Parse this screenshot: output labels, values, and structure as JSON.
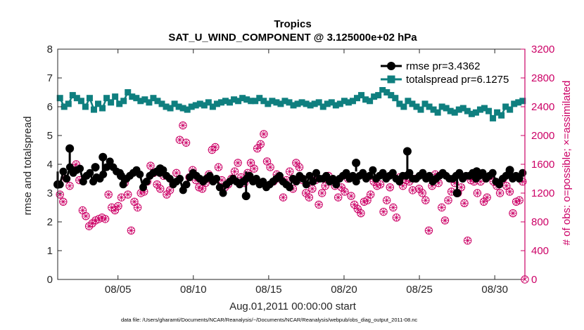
{
  "chart_data": {
    "type": "line",
    "title": "Tropics",
    "subtitle": "SAT_U_WIND_COMPONENT @ 3.125000e+02 hPa",
    "xlabel": "Aug.01,2011 00:00:00 start",
    "ylabel": "rmse and totalspread",
    "ylabel_right": "# of obs: o=possible; ×=assimilated",
    "xlim": [
      1.0,
      32.0
    ],
    "ylim": [
      0,
      8
    ],
    "ylim_right": [
      0,
      3200
    ],
    "x_ticks": [
      5,
      10,
      15,
      20,
      25,
      30
    ],
    "x_tick_labels": [
      "08/05",
      "08/10",
      "08/15",
      "08/20",
      "08/25",
      "08/30"
    ],
    "y_ticks": [
      "0",
      "1",
      "2",
      "3",
      "4",
      "5",
      "6",
      "7",
      "8"
    ],
    "y_right_ticks": [
      "0",
      "400",
      "800",
      "1200",
      "1600",
      "2000",
      "2400",
      "2800",
      "3200"
    ],
    "legend_position": "top-right",
    "colors": {
      "rmse": "#000000",
      "spread": "#0f7f7f",
      "obs": "#cc0066"
    },
    "footer": "data file: /Users/gharamti/Documents/NCAR/Reanalysis/~/Documents/NCAR/Reanalysis/webpub/obs_diag_output_2011-08.nc",
    "series": [
      {
        "name": "rmse pr=3.4362",
        "axis": "left",
        "values": [
          3.3,
          3.75,
          3.5,
          3.9,
          3.7,
          3.8,
          3.85,
          3.4,
          3.6,
          3.7,
          3.4,
          3.55,
          3.5,
          3.65,
          3.9,
          4.1,
          3.9,
          3.75,
          3.7,
          3.3,
          3.5,
          3.6,
          3.7,
          3.8,
          3.65,
          3.2,
          3.4,
          3.6,
          3.7,
          3.75,
          3.7,
          3.8,
          3.6,
          3.5,
          3.3,
          3.4,
          3.5,
          3.1,
          3.3,
          3.55,
          3.7,
          3.6,
          3.5,
          3.4,
          3.5,
          3.6,
          3.4,
          3.5,
          3.2,
          3.0,
          3.3,
          3.4,
          3.5,
          3.4,
          3.3,
          3.4,
          3.5,
          3.6,
          3.4,
          3.5,
          3.3,
          3.4,
          3.2,
          3.3,
          3.4,
          3.5,
          3.6,
          3.4,
          3.3,
          3.2,
          3.5,
          3.4,
          3.6,
          3.5,
          3.3,
          3.6,
          3.4,
          3.7,
          3.5,
          3.5,
          3.6,
          3.4,
          3.5,
          3.3,
          3.5,
          3.6,
          3.7,
          3.5,
          3.6,
          3.4,
          3.6,
          3.7,
          3.5,
          3.6,
          3.8,
          3.5,
          3.6,
          3.7,
          3.5,
          3.6,
          3.7,
          3.5,
          3.4,
          3.6,
          3.6,
          3.7,
          3.5,
          3.5,
          3.6,
          3.7,
          3.5,
          3.6,
          3.4,
          3.5,
          3.6,
          3.7,
          3.6,
          3.5,
          3.5,
          3.6,
          3.7,
          3.5,
          3.6,
          3.6,
          3.7,
          3.5,
          3.6,
          3.7,
          3.5,
          3.6,
          3.7,
          3.4,
          3.3,
          3.5,
          3.6,
          3.7,
          3.5,
          3.6,
          3.5,
          3.7
        ],
        "highlights": [
          {
            "x": 1.0,
            "y": 3.3
          },
          {
            "x": 1.8,
            "y": 4.55
          },
          {
            "x": 3.5,
            "y": 3.9
          },
          {
            "x": 4.0,
            "y": 4.25
          },
          {
            "x": 5.2,
            "y": 3.6
          },
          {
            "x": 7.8,
            "y": 3.85
          },
          {
            "x": 13.5,
            "y": 2.9
          },
          {
            "x": 20.8,
            "y": 4.05
          },
          {
            "x": 24.2,
            "y": 4.45
          },
          {
            "x": 27.5,
            "y": 3.0
          },
          {
            "x": 28.8,
            "y": 3.75
          },
          {
            "x": 31.0,
            "y": 3.8
          }
        ]
      },
      {
        "name": "totalspread pr=6.1275",
        "axis": "left",
        "values": [
          6.3,
          6.0,
          6.1,
          6.4,
          6.3,
          6.2,
          6.0,
          6.3,
          5.9,
          6.1,
          5.95,
          6.3,
          6.15,
          6.35,
          6.1,
          6.2,
          6.5,
          6.35,
          6.3,
          6.2,
          6.25,
          6.15,
          6.3,
          6.2,
          6.1,
          6.0,
          5.95,
          6.1,
          6.0,
          5.95,
          5.9,
          6.0,
          6.05,
          6.1,
          6.05,
          6.15,
          6.0,
          6.1,
          6.15,
          6.2,
          6.15,
          6.25,
          6.2,
          6.3,
          6.25,
          6.2,
          6.2,
          6.3,
          6.2,
          6.1,
          6.2,
          6.15,
          6.1,
          6.2,
          6.15,
          6.05,
          6.1,
          6.15,
          6.1,
          6.05,
          6.1,
          6.15,
          6.0,
          6.1,
          6.15,
          6.05,
          6.1,
          6.2,
          6.15,
          6.2,
          6.3,
          6.4,
          6.25,
          6.2,
          6.35,
          6.4,
          6.6,
          6.5,
          6.4,
          6.3,
          6.1,
          6.0,
          6.2,
          6.1,
          6.0,
          5.9,
          6.1,
          6.0,
          5.9,
          5.8,
          6.0,
          5.95,
          5.85,
          5.8,
          5.9,
          5.95,
          5.85,
          5.75,
          5.8,
          5.9,
          5.95,
          5.85,
          5.6,
          5.8,
          5.7,
          6.0,
          5.9,
          6.1,
          6.15,
          6.2
        ]
      },
      {
        "name": "# of obs possible",
        "axis": "right",
        "values": [
          1180,
          1080,
          1400,
          1300,
          1550,
          1600,
          1380,
          960,
          880,
          740,
          780,
          820,
          840,
          860,
          840,
          1180,
          1000,
          960,
          1020,
          1140,
          1340,
          1180,
          680,
          1080,
          1000,
          1200,
          1220,
          1360,
          1580,
          1480,
          1320,
          1260,
          1440,
          1180,
          1240,
          1340,
          1480,
          1940,
          2140,
          1900,
          1420,
          1520,
          1380,
          1280,
          1260,
          1340,
          1460,
          1800,
          1840,
          1560,
          1380,
          1280,
          1320,
          1400,
          1500,
          1620,
          1420,
          1340,
          1480,
          1620,
          1540,
          1820,
          1880,
          2020,
          1640,
          1560,
          1360,
          1460,
          1400,
          1140,
          1380,
          1500,
          1260,
          1620,
          1560,
          1380,
          1200,
          1140,
          1260,
          1380,
          1040,
          1200,
          1300,
          1440,
          1380,
          1300,
          1140,
          1280,
          1220,
          1400,
          1160,
          1040,
          980,
          920,
          1080,
          1100,
          1180,
          1360,
          1300,
          1320,
          940,
          1100,
          1280,
          1000,
          860,
          1420,
          1300,
          1380,
          1360,
          1240,
          1400,
          1260,
          1200,
          1100,
          680,
          1300,
          1460,
          1340,
          1000,
          820,
          1100,
          1220,
          1340,
          1200,
          1280,
          1060,
          540,
          1380,
          1360,
          1200,
          1360,
          1080,
          1140,
          1440,
          1360,
          1300,
          1200,
          1400,
          1300,
          1220,
          920,
          1080,
          1100,
          1360
        ]
      }
    ]
  }
}
